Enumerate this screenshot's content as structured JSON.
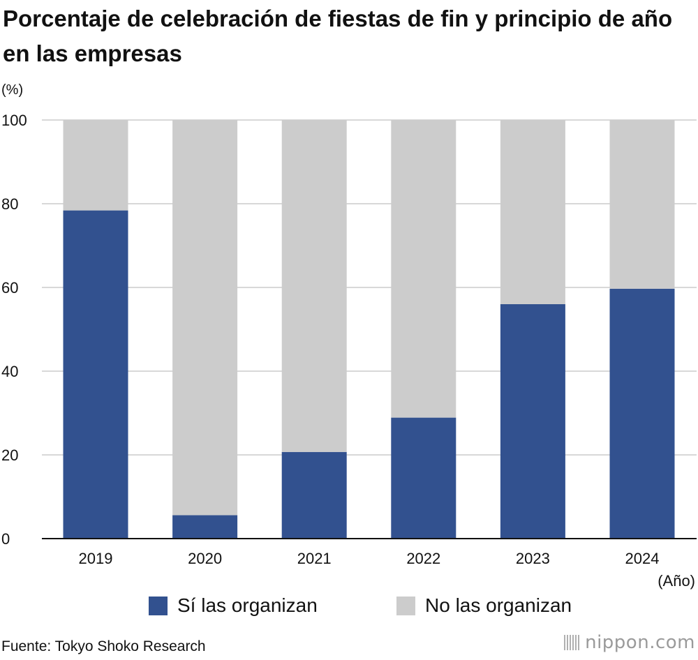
{
  "title": "Porcentaje de celebración de fiestas de fin y principio de año en las empresas",
  "y_unit": "(%)",
  "x_unit": "(Año)",
  "source": "Fuente: Tokyo Shoko Research",
  "logo": {
    "name": "nippon",
    "suffix": ".com"
  },
  "colors": {
    "yes": "#32518f",
    "no": "#cccccc",
    "grid": "#cccccc",
    "axis": "#111111"
  },
  "legend": {
    "yes": "Sí las organizan",
    "no": "No las organizan"
  },
  "chart_data": {
    "type": "bar",
    "stacked": true,
    "title": "Porcentaje de celebración de fiestas de fin y principio de año en las empresas",
    "xlabel": "(Año)",
    "ylabel": "(%)",
    "ylim": [
      0,
      100
    ],
    "yticks": [
      0,
      20,
      40,
      60,
      80,
      100
    ],
    "grid": true,
    "categories": [
      "2019",
      "2020",
      "2021",
      "2022",
      "2023",
      "2024"
    ],
    "series": [
      {
        "name": "Sí las organizan",
        "values": [
          78.4,
          5.6,
          20.7,
          28.9,
          56.0,
          59.7
        ]
      },
      {
        "name": "No las organizan",
        "values": [
          21.6,
          94.4,
          79.3,
          71.1,
          44.0,
          40.3
        ]
      }
    ]
  }
}
